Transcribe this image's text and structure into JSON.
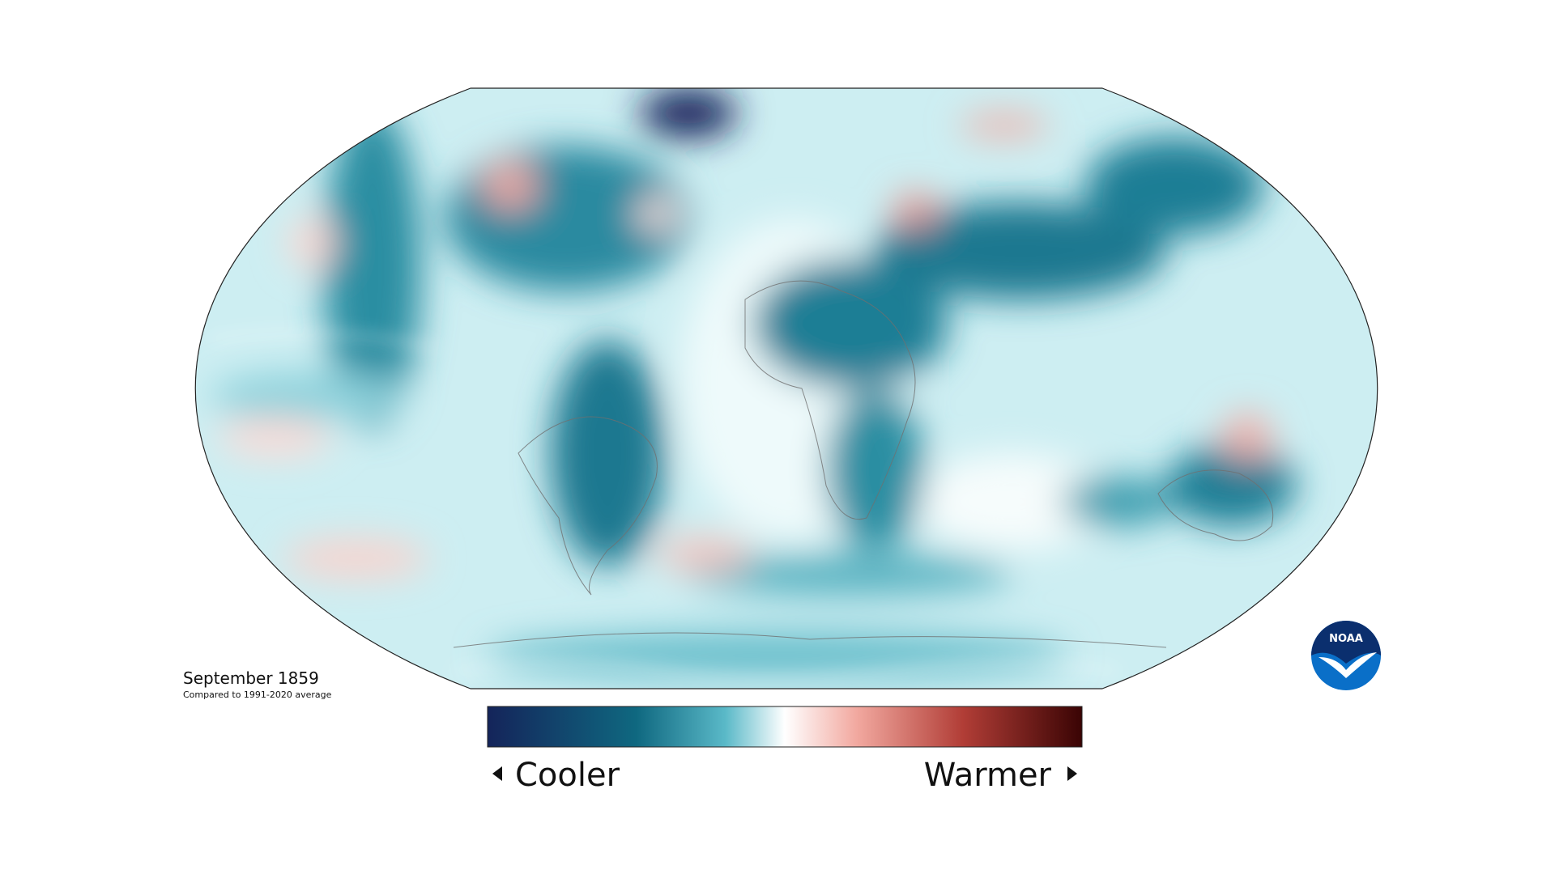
{
  "map": {
    "title": "September 1859",
    "subtitle": "Compared to 1991-2020 average"
  },
  "legend": {
    "low_label": "Cooler",
    "high_label": "Warmer"
  },
  "logo": {
    "text": "NOAA"
  }
}
